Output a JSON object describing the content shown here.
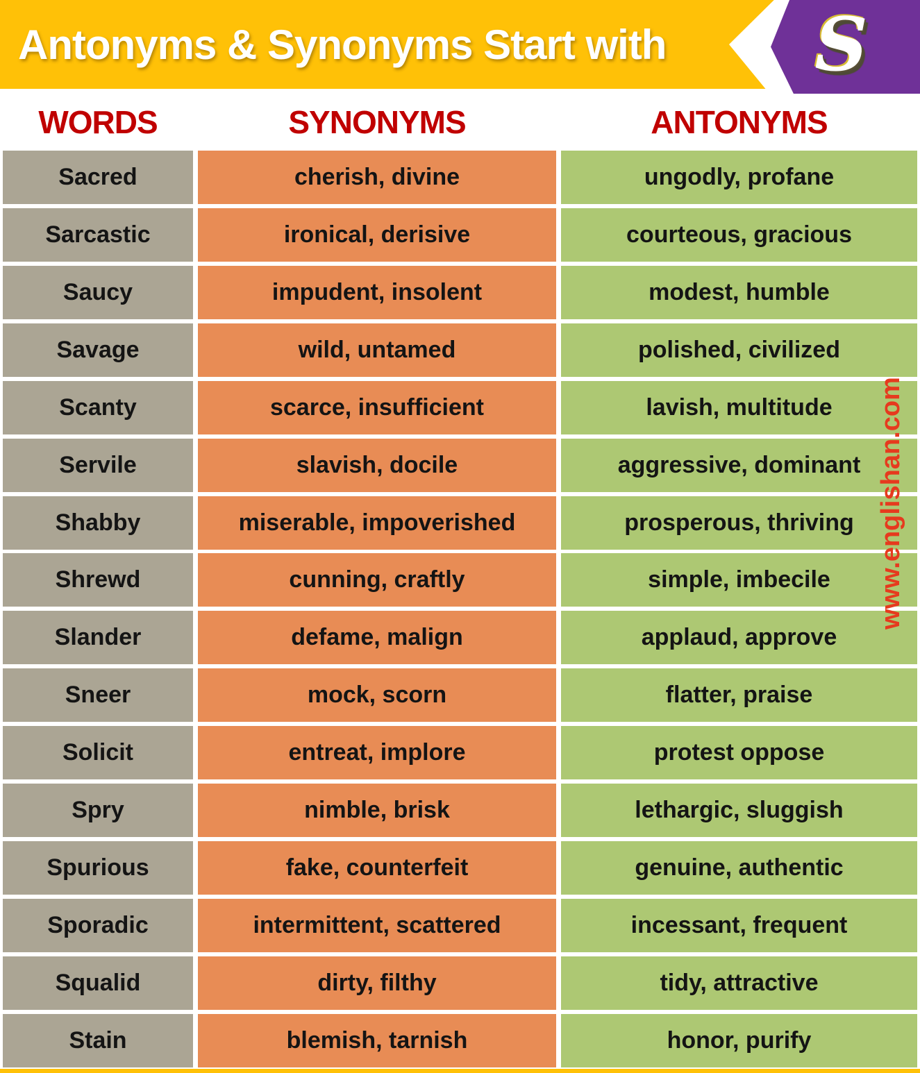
{
  "header": {
    "title": "Antonyms & Synonyms Start with",
    "letter": "S"
  },
  "columns": {
    "words": "WORDS",
    "synonyms": "SYNONYMS",
    "antonyms": "ANTONYMS"
  },
  "watermark": "www.englishan.com",
  "colors": {
    "banner_yellow": "#FFC107",
    "ribbon_purple": "#6F3198",
    "header_red": "#C00000",
    "word_cell": "#ABA594",
    "synonym_cell": "#E88C55",
    "antonym_cell": "#ADC873",
    "watermark_red": "#E63A1E"
  },
  "rows": [
    {
      "word": "Sacred",
      "synonyms": "cherish, divine",
      "antonyms": "ungodly, profane"
    },
    {
      "word": "Sarcastic",
      "synonyms": "ironical, derisive",
      "antonyms": "courteous, gracious"
    },
    {
      "word": "Saucy",
      "synonyms": "impudent, insolent",
      "antonyms": "modest, humble"
    },
    {
      "word": "Savage",
      "synonyms": "wild, untamed",
      "antonyms": "polished, civilized"
    },
    {
      "word": "Scanty",
      "synonyms": "scarce, insufficient",
      "antonyms": "lavish, multitude"
    },
    {
      "word": "Servile",
      "synonyms": "slavish, docile",
      "antonyms": "aggressive, dominant"
    },
    {
      "word": "Shabby",
      "synonyms": "miserable, impoverished",
      "antonyms": "prosperous, thriving"
    },
    {
      "word": "Shrewd",
      "synonyms": "cunning, craftly",
      "antonyms": "simple, imbecile"
    },
    {
      "word": "Slander",
      "synonyms": "defame, malign",
      "antonyms": "applaud, approve"
    },
    {
      "word": "Sneer",
      "synonyms": "mock, scorn",
      "antonyms": "flatter, praise"
    },
    {
      "word": "Solicit",
      "synonyms": "entreat, implore",
      "antonyms": "protest oppose"
    },
    {
      "word": "Spry",
      "synonyms": "nimble, brisk",
      "antonyms": "lethargic, sluggish"
    },
    {
      "word": "Spurious",
      "synonyms": "fake, counterfeit",
      "antonyms": "genuine, authentic"
    },
    {
      "word": "Sporadic",
      "synonyms": "intermittent, scattered",
      "antonyms": "incessant, frequent"
    },
    {
      "word": "Squalid",
      "synonyms": "dirty, filthy",
      "antonyms": "tidy, attractive"
    },
    {
      "word": "Stain",
      "synonyms": "blemish, tarnish",
      "antonyms": "honor, purify"
    }
  ]
}
